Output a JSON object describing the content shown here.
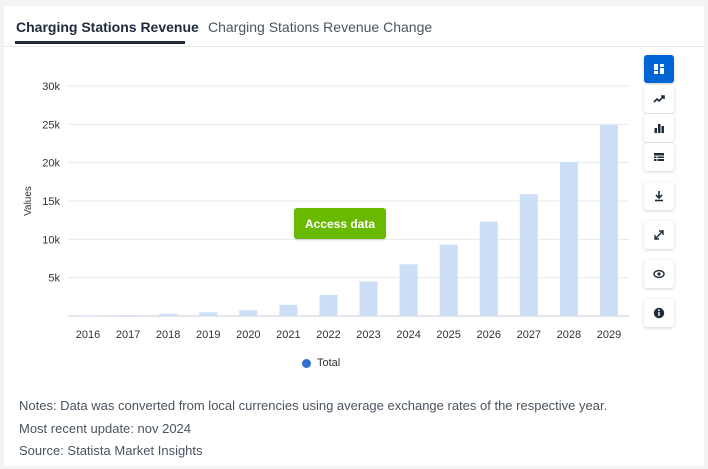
{
  "tabs": [
    {
      "label": "Charging Stations Revenue",
      "active": true
    },
    {
      "label": "Charging Stations Revenue Change",
      "active": false
    }
  ],
  "access_button": "Access data",
  "legend": {
    "label": "Total",
    "color": "#2f6fd0"
  },
  "notes": [
    "Notes: Data was converted from local currencies using average exchange rates of the respective year.",
    "Most recent update: nov 2024",
    "Source: Statista Market Insights"
  ],
  "toolbar": {
    "icons": [
      "dashboard-icon",
      "line-chart-icon",
      "bar-chart-icon",
      "table-icon",
      "download-icon",
      "expand-icon",
      "eye-icon",
      "info-icon"
    ],
    "active_color": "#0066d6",
    "icon_color": "#1f2a3a"
  },
  "chart_data": {
    "type": "bar",
    "categories": [
      "2016",
      "2017",
      "2018",
      "2019",
      "2020",
      "2021",
      "2022",
      "2023",
      "2024",
      "2025",
      "2026",
      "2027",
      "2028",
      "2029"
    ],
    "series": [
      {
        "name": "Total",
        "values": [
          60,
          120,
          300,
          480,
          750,
          1450,
          2750,
          4500,
          6750,
          9300,
          12300,
          15900,
          20100,
          24900
        ]
      }
    ],
    "ylabel": "Values",
    "ylim": [
      0,
      30000
    ],
    "yticks": [
      5000,
      10000,
      15000,
      20000,
      25000,
      30000
    ],
    "ytick_labels": [
      "5k",
      "10k",
      "15k",
      "20k",
      "25k",
      "30k"
    ],
    "bar_color": "#cddff7",
    "grid": true,
    "legend_position": "bottom"
  }
}
